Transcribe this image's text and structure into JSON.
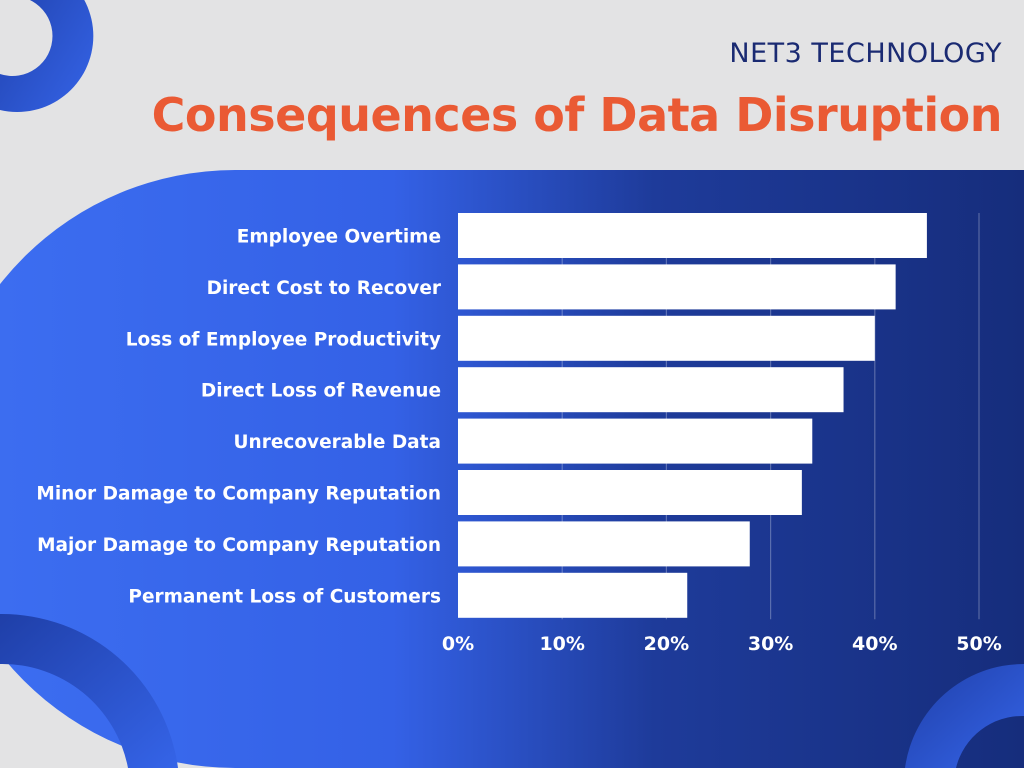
{
  "header": {
    "brand": "NET3 TECHNOLOGY",
    "title": "Consequences of Data Disruption"
  },
  "colors": {
    "background": "#e3e3e4",
    "panel_left": "#3d6ff2",
    "panel_right": "#162d7c",
    "bar": "#ffffff",
    "brand": "#1a2a72",
    "title": "#ea5a34"
  },
  "chart_data": {
    "type": "bar",
    "orientation": "horizontal",
    "categories": [
      "Employee Overtime",
      "Direct Cost to Recover",
      "Loss of Employee Productivity",
      "Direct Loss of Revenue",
      "Unrecoverable Data",
      "Minor Damage to Company Reputation",
      "Major Damage to Company Reputation",
      "Permanent Loss of Customers"
    ],
    "values": [
      45,
      42,
      40,
      37,
      34,
      33,
      28,
      22
    ],
    "xlim": [
      0,
      50
    ],
    "ticks": [
      0,
      10,
      20,
      30,
      40,
      50
    ],
    "tick_labels": [
      "0%",
      "10%",
      "20%",
      "30%",
      "40%",
      "50%"
    ],
    "grid": true,
    "legend": "none"
  }
}
